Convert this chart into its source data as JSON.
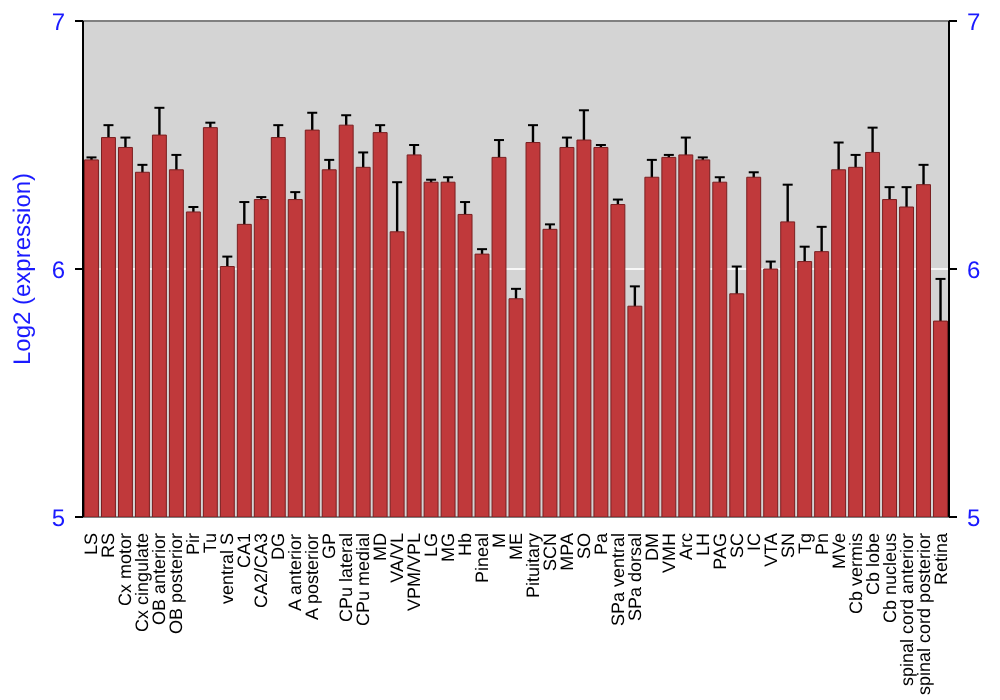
{
  "chart_data": {
    "type": "bar",
    "ylabel": "Log2 (expression)",
    "categories": [
      "LS",
      "RS",
      "Cx motor",
      "Cx cingulate",
      "OB anterior",
      "OB posterior",
      "Pir",
      "Tu",
      "ventral S",
      "CA1",
      "CA2/CA3",
      "DG",
      "A anterior",
      "A posterior",
      "GP",
      "CPu lateral",
      "CPu medial",
      "MD",
      "VA/VL",
      "VPM/VPL",
      "LG",
      "MG",
      "Hb",
      "Pineal",
      "M",
      "ME",
      "Pituitary",
      "SCN",
      "MPA",
      "SO",
      "Pa",
      "SPa ventral",
      "SPa dorsal",
      "DM",
      "VMH",
      "Arc",
      "LH",
      "PAG",
      "SC",
      "IC",
      "VTA",
      "SN",
      "Tg",
      "Pn",
      "MVe",
      "Cb vermis",
      "Cb lobe",
      "Cb nucleus",
      "spinal cord anterior",
      "spinal cord posterior",
      "Retina"
    ],
    "values": [
      6.44,
      6.53,
      6.49,
      6.39,
      6.54,
      6.4,
      6.23,
      6.57,
      6.01,
      6.18,
      6.28,
      6.53,
      6.28,
      6.56,
      6.4,
      6.58,
      6.41,
      6.55,
      6.15,
      6.46,
      6.35,
      6.35,
      6.22,
      6.06,
      6.45,
      5.88,
      6.51,
      6.16,
      6.49,
      6.52,
      6.49,
      6.26,
      5.85,
      6.37,
      6.45,
      6.46,
      6.44,
      6.35,
      5.9,
      6.37,
      6.0,
      6.19,
      6.03,
      6.07,
      6.4,
      6.41,
      6.47,
      6.28,
      6.25,
      6.34,
      5.79
    ],
    "errors": [
      0.01,
      0.05,
      0.04,
      0.03,
      0.11,
      0.06,
      0.02,
      0.02,
      0.04,
      0.09,
      0.01,
      0.05,
      0.03,
      0.07,
      0.04,
      0.04,
      0.06,
      0.03,
      0.2,
      0.04,
      0.01,
      0.02,
      0.05,
      0.02,
      0.07,
      0.04,
      0.07,
      0.02,
      0.04,
      0.12,
      0.01,
      0.02,
      0.08,
      0.07,
      0.01,
      0.07,
      0.01,
      0.02,
      0.11,
      0.02,
      0.03,
      0.15,
      0.06,
      0.1,
      0.11,
      0.05,
      0.1,
      0.05,
      0.08,
      0.08,
      0.17
    ],
    "color": "#c0393b",
    "ylim": [
      5,
      7
    ],
    "yticks": [
      5,
      6,
      7
    ],
    "y2lim": [
      5,
      7
    ],
    "y2ticks": [
      5,
      6,
      7
    ],
    "grid": "y"
  }
}
